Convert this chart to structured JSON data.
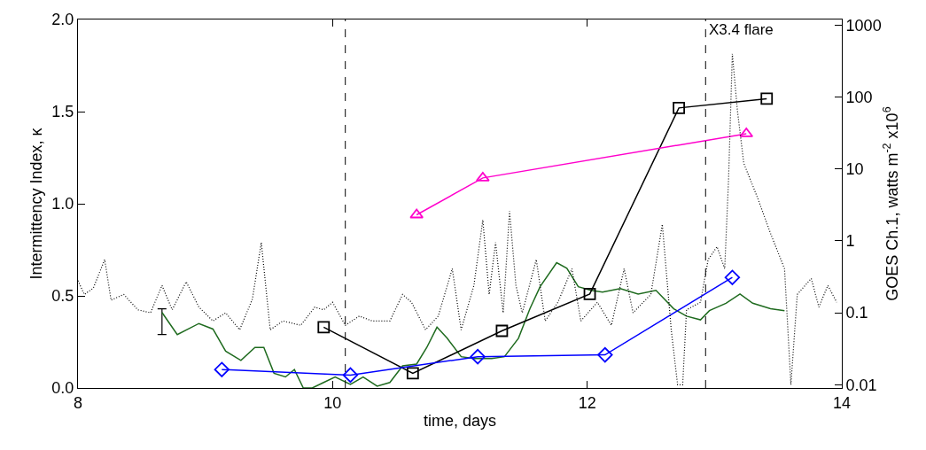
{
  "chart_data": {
    "type": "line",
    "xlabel": "time, days",
    "ylabel": "Intermittency Index, κ",
    "y2label": "GOES Ch.1, watts m$^{-2}$ x10$^{6}$",
    "xlim": [
      8,
      14
    ],
    "xticks": [
      8,
      10,
      12,
      14
    ],
    "ylim": [
      0,
      2
    ],
    "yticks": [
      {
        "value": 0,
        "label": "0.0"
      },
      {
        "value": 0.5,
        "label": "0.5"
      },
      {
        "value": 1,
        "label": "1.0"
      },
      {
        "value": 1.5,
        "label": "1.5"
      },
      {
        "value": 2,
        "label": "2.0"
      }
    ],
    "y2lim": [
      0.009,
      1200
    ],
    "y2ticks": [
      0.01,
      0.1,
      1,
      10,
      100,
      1000
    ],
    "log": "y2",
    "ref_lines": [
      {
        "axis": "x",
        "value": 10.1,
        "label": null,
        "color": "#000000",
        "line_style": "dashed"
      },
      {
        "axis": "x",
        "value": 12.93,
        "label": "X3.4 flare",
        "color": "#000000",
        "line_style": "dashed"
      }
    ],
    "series": [
      {
        "axis": "y2",
        "color": "#000000",
        "line_style": "dotted",
        "marker": "none",
        "x": [
          8.0,
          8.05,
          8.12,
          8.21,
          8.26,
          8.36,
          8.47,
          8.57,
          8.66,
          8.74,
          8.85,
          8.95,
          9.06,
          9.16,
          9.27,
          9.37,
          9.44,
          9.51,
          9.61,
          9.75,
          9.86,
          9.93,
          10.0,
          10.1,
          10.21,
          10.31,
          10.45,
          10.55,
          10.62,
          10.73,
          10.83,
          10.94,
          11.01,
          11.11,
          11.18,
          11.23,
          11.28,
          11.34,
          11.39,
          11.44,
          11.49,
          11.6,
          11.67,
          11.77,
          11.88,
          11.95,
          12.08,
          12.19,
          12.29,
          12.36,
          12.5,
          12.59,
          12.66,
          12.71,
          12.75,
          12.78,
          12.89,
          12.95,
          13.02,
          13.08,
          13.11,
          13.14,
          13.18,
          13.23,
          13.34,
          13.44,
          13.55,
          13.6,
          13.65,
          13.76,
          13.82,
          13.89,
          13.96
        ],
        "values": [
          0.28,
          0.18,
          0.22,
          0.55,
          0.15,
          0.18,
          0.11,
          0.1,
          0.24,
          0.11,
          0.27,
          0.12,
          0.077,
          0.1,
          0.058,
          0.155,
          0.95,
          0.058,
          0.077,
          0.067,
          0.12,
          0.11,
          0.14,
          0.067,
          0.09,
          0.077,
          0.077,
          0.18,
          0.14,
          0.058,
          0.09,
          0.41,
          0.058,
          0.24,
          1.95,
          0.18,
          0.95,
          0.1,
          2.6,
          0.24,
          0.1,
          0.55,
          0.077,
          0.14,
          0.41,
          0.077,
          0.14,
          0.067,
          0.41,
          0.1,
          0.18,
          1.7,
          0.058,
          0.01,
          0.01,
          0.11,
          0.14,
          0.55,
          0.83,
          0.41,
          6.9,
          400,
          65,
          12,
          3.9,
          1.27,
          0.41,
          0.01,
          0.18,
          0.3,
          0.12,
          0.24,
          0.14
        ]
      },
      {
        "color": "#1f6b1f",
        "line_style": "solid",
        "marker": "none",
        "errors": [
          [
            0.29,
            0.43
          ],
          null,
          null,
          null,
          null,
          null,
          null,
          null,
          null,
          null,
          null,
          null,
          null,
          null,
          null,
          null,
          null,
          null,
          null,
          null,
          null,
          null,
          null,
          null,
          null,
          null,
          null,
          null,
          null,
          null,
          null,
          null,
          null,
          null,
          null,
          null,
          null,
          null,
          null,
          null,
          null,
          null,
          null,
          null,
          null,
          null,
          null,
          null
        ],
        "x": [
          8.66,
          8.78,
          8.95,
          9.06,
          9.16,
          9.28,
          9.39,
          9.46,
          9.54,
          9.63,
          9.7,
          9.77,
          9.84,
          9.93,
          10.02,
          10.14,
          10.24,
          10.35,
          10.45,
          10.55,
          10.66,
          10.74,
          10.82,
          10.9,
          11.01,
          11.11,
          11.25,
          11.35,
          11.46,
          11.55,
          11.63,
          11.76,
          11.84,
          11.93,
          12.03,
          12.12,
          12.26,
          12.4,
          12.54,
          12.68,
          12.78,
          12.89,
          12.96,
          13.09,
          13.2,
          13.3,
          13.44,
          13.55
        ],
        "values": [
          0.41,
          0.29,
          0.35,
          0.32,
          0.2,
          0.15,
          0.22,
          0.22,
          0.08,
          0.06,
          0.1,
          0.0,
          0.0,
          0.03,
          0.06,
          0.02,
          0.06,
          0.01,
          0.03,
          0.12,
          0.13,
          0.22,
          0.33,
          0.27,
          0.17,
          0.16,
          0.16,
          0.17,
          0.27,
          0.43,
          0.55,
          0.68,
          0.65,
          0.55,
          0.53,
          0.52,
          0.54,
          0.51,
          0.53,
          0.43,
          0.39,
          0.37,
          0.42,
          0.46,
          0.51,
          0.46,
          0.43,
          0.42
        ]
      },
      {
        "color": "#000000",
        "line_style": "solid",
        "marker": "square",
        "x": [
          9.93,
          10.63,
          11.33,
          12.02,
          12.72,
          13.41
        ],
        "values": [
          0.33,
          0.08,
          0.31,
          0.51,
          1.52,
          1.57
        ]
      },
      {
        "color": "#ff00cc",
        "line_style": "solid",
        "marker": "triangle",
        "x": [
          10.66,
          11.18,
          13.25
        ],
        "values": [
          0.94,
          1.14,
          1.38
        ]
      },
      {
        "color": "#0000ff",
        "line_style": "solid",
        "marker": "diamond",
        "x": [
          9.13,
          10.14,
          11.14,
          12.14,
          13.14
        ],
        "values": [
          0.1,
          0.07,
          0.17,
          0.18,
          0.6
        ]
      }
    ]
  }
}
